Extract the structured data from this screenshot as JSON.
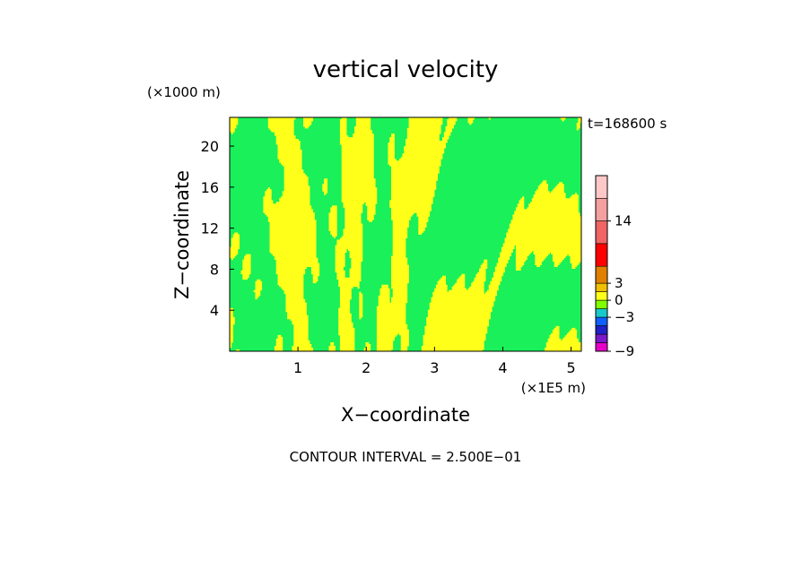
{
  "chart_data": {
    "type": "heatmap",
    "title": "vertical velocity",
    "xlabel": "X−coordinate",
    "ylabel": "Z−coordinate",
    "x_unit": "(×1E5 m)",
    "y_unit": "(×1000 m)",
    "xlim": [
      0,
      5.15
    ],
    "ylim": [
      0,
      22.8
    ],
    "x_ticks": [
      1,
      2,
      3,
      4,
      5
    ],
    "y_ticks": [
      4,
      8,
      12,
      16,
      20
    ],
    "x_tick_labels": [
      "1",
      "2",
      "3",
      "4",
      "5"
    ],
    "y_tick_labels": [
      "4",
      "8",
      "12",
      "16",
      "20"
    ],
    "time_label": "t=168600 s",
    "contour_interval_text": "CONTOUR INTERVAL = 2.500E−01",
    "colorbar": {
      "levels": [
        -9,
        -7.5,
        -6,
        -4.5,
        -3,
        -1.5,
        0,
        1.5,
        3,
        6,
        10,
        14,
        18,
        22
      ],
      "colors": [
        "#e600c8",
        "#7a19c8",
        "#2020c8",
        "#1060ff",
        "#19c8c8",
        "#80ff00",
        "#ffff19",
        "#f0c000",
        "#e08000",
        "#ff0000",
        "#f06464",
        "#f5a0a0",
        "#ffc8c8"
      ],
      "tick_values": [
        -9,
        -3,
        0,
        3,
        14
      ],
      "tick_labels": [
        "−9",
        "−3",
        "0",
        "3",
        "14"
      ]
    },
    "field_colors": {
      "positive": "#ffff19",
      "negative": "#19f05a"
    }
  }
}
